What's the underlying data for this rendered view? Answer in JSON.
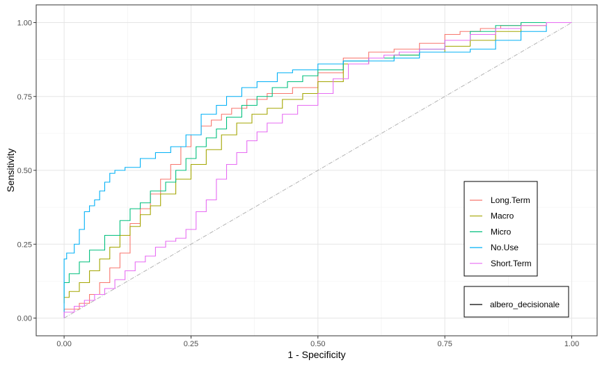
{
  "chart_data": {
    "type": "line",
    "title": "",
    "xlabel": "1 - Specificity",
    "ylabel": "Sensitivity",
    "xlim": [
      -0.055,
      1.05
    ],
    "ylim": [
      -0.06,
      1.06
    ],
    "x_ticks": [
      0.0,
      0.25,
      0.5,
      0.75,
      1.0
    ],
    "x_tick_labels": [
      "0.00",
      "0.25",
      "0.50",
      "0.75",
      "1.00"
    ],
    "y_ticks": [
      0.0,
      0.25,
      0.5,
      0.75,
      1.0
    ],
    "y_tick_labels": [
      "0.00",
      "0.25",
      "0.50",
      "0.75",
      "1.00"
    ],
    "grid": true,
    "legend_position": "bottom-right",
    "reference_line": {
      "x": [
        0,
        1
      ],
      "y": [
        0,
        1
      ],
      "color": "#b3b3b3",
      "style": "dotdash"
    },
    "legends": [
      {
        "title": "",
        "entries": [
          "Long.Term",
          "Macro",
          "Micro",
          "No.Use",
          "Short.Term"
        ]
      },
      {
        "title": "",
        "entries": [
          "albero_decisionale"
        ]
      }
    ],
    "series": [
      {
        "name": "Long.Term",
        "color": "#F8766D",
        "x": [
          0.0,
          0.03,
          0.05,
          0.07,
          0.09,
          0.11,
          0.13,
          0.15,
          0.17,
          0.19,
          0.21,
          0.23,
          0.25,
          0.27,
          0.29,
          0.31,
          0.33,
          0.36,
          0.4,
          0.45,
          0.5,
          0.55,
          0.6,
          0.65,
          0.7,
          0.75,
          0.78,
          0.82,
          0.86,
          0.9,
          0.94,
          0.98,
          1.0
        ],
        "y": [
          0.0,
          0.03,
          0.05,
          0.08,
          0.12,
          0.17,
          0.22,
          0.32,
          0.37,
          0.42,
          0.47,
          0.52,
          0.58,
          0.62,
          0.65,
          0.67,
          0.69,
          0.71,
          0.74,
          0.76,
          0.78,
          0.83,
          0.88,
          0.9,
          0.91,
          0.93,
          0.96,
          0.97,
          0.98,
          0.99,
          1.0,
          1.0,
          1.0
        ]
      },
      {
        "name": "Macro",
        "color": "#A3A500",
        "x": [
          0.0,
          0.01,
          0.03,
          0.05,
          0.07,
          0.09,
          0.11,
          0.13,
          0.15,
          0.17,
          0.19,
          0.22,
          0.25,
          0.28,
          0.31,
          0.34,
          0.37,
          0.4,
          0.43,
          0.47,
          0.5,
          0.55,
          0.6,
          0.65,
          0.7,
          0.75,
          0.8,
          0.85,
          0.9,
          0.95,
          1.0
        ],
        "y": [
          0.05,
          0.07,
          0.09,
          0.12,
          0.16,
          0.2,
          0.24,
          0.28,
          0.31,
          0.35,
          0.38,
          0.42,
          0.47,
          0.52,
          0.57,
          0.62,
          0.66,
          0.69,
          0.71,
          0.74,
          0.76,
          0.8,
          0.86,
          0.88,
          0.89,
          0.9,
          0.92,
          0.94,
          0.97,
          0.99,
          1.0
        ]
      },
      {
        "name": "Micro",
        "color": "#00BF7D",
        "x": [
          0.0,
          0.01,
          0.03,
          0.05,
          0.08,
          0.11,
          0.13,
          0.15,
          0.17,
          0.2,
          0.22,
          0.24,
          0.26,
          0.28,
          0.3,
          0.32,
          0.35,
          0.38,
          0.41,
          0.44,
          0.47,
          0.5,
          0.55,
          0.6,
          0.65,
          0.7,
          0.75,
          0.8,
          0.85,
          0.9,
          0.95,
          1.0
        ],
        "y": [
          0.07,
          0.12,
          0.15,
          0.19,
          0.23,
          0.28,
          0.33,
          0.37,
          0.39,
          0.43,
          0.46,
          0.5,
          0.54,
          0.58,
          0.61,
          0.64,
          0.68,
          0.72,
          0.75,
          0.78,
          0.8,
          0.82,
          0.84,
          0.87,
          0.88,
          0.89,
          0.91,
          0.94,
          0.97,
          0.99,
          1.0,
          1.0
        ]
      },
      {
        "name": "No.Use",
        "color": "#00B0F6",
        "x": [
          0.0,
          0.005,
          0.02,
          0.03,
          0.04,
          0.05,
          0.06,
          0.07,
          0.08,
          0.09,
          0.1,
          0.12,
          0.15,
          0.18,
          0.21,
          0.24,
          0.27,
          0.3,
          0.32,
          0.35,
          0.38,
          0.42,
          0.45,
          0.5,
          0.55,
          0.6,
          0.65,
          0.7,
          0.75,
          0.8,
          0.85,
          0.9,
          0.95,
          1.0
        ],
        "y": [
          0.0,
          0.2,
          0.22,
          0.25,
          0.3,
          0.36,
          0.38,
          0.4,
          0.43,
          0.46,
          0.49,
          0.5,
          0.51,
          0.54,
          0.56,
          0.58,
          0.62,
          0.69,
          0.72,
          0.75,
          0.78,
          0.8,
          0.83,
          0.84,
          0.86,
          0.87,
          0.87,
          0.88,
          0.9,
          0.9,
          0.91,
          0.94,
          0.97,
          1.0
        ]
      },
      {
        "name": "Short.Term",
        "color": "#E76BF3",
        "x": [
          0.0,
          0.02,
          0.04,
          0.06,
          0.08,
          0.1,
          0.12,
          0.14,
          0.16,
          0.18,
          0.2,
          0.22,
          0.24,
          0.26,
          0.28,
          0.3,
          0.32,
          0.34,
          0.36,
          0.38,
          0.4,
          0.43,
          0.46,
          0.5,
          0.53,
          0.56,
          0.6,
          0.63,
          0.66,
          0.7,
          0.75,
          0.8,
          0.85,
          0.9,
          0.95,
          1.0
        ],
        "y": [
          0.0,
          0.02,
          0.04,
          0.06,
          0.08,
          0.1,
          0.13,
          0.16,
          0.19,
          0.21,
          0.24,
          0.26,
          0.27,
          0.3,
          0.36,
          0.4,
          0.47,
          0.52,
          0.56,
          0.6,
          0.63,
          0.66,
          0.69,
          0.72,
          0.76,
          0.81,
          0.86,
          0.88,
          0.89,
          0.9,
          0.91,
          0.94,
          0.96,
          0.98,
          0.99,
          1.0
        ]
      }
    ]
  }
}
